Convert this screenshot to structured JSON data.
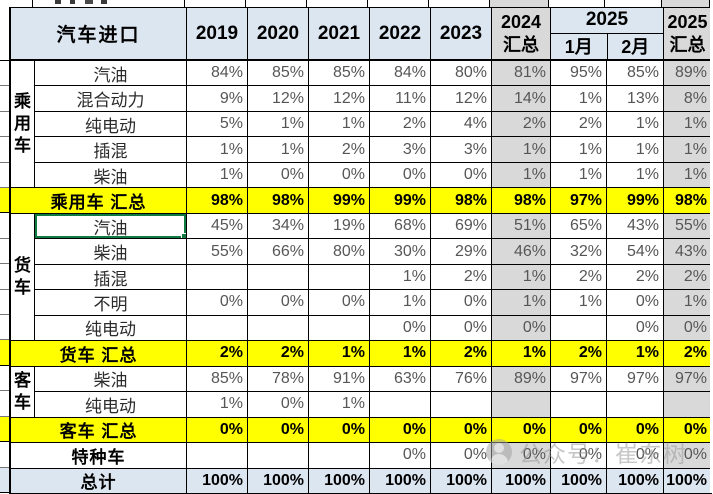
{
  "table": {
    "header": {
      "title": "汽车进口",
      "years": [
        "2019",
        "2020",
        "2021",
        "2022",
        "2023"
      ],
      "col2024": [
        "2024",
        "汇总"
      ],
      "col2025_label": "2025",
      "months": [
        "1月",
        "2月"
      ],
      "col2025t": [
        "2025",
        "汇总"
      ]
    },
    "groups": [
      {
        "label": "乘用车",
        "chars": [
          "乘",
          "用",
          "车"
        ],
        "start": 1,
        "span": 5
      },
      {
        "label": "货车",
        "chars": [
          "货",
          "车"
        ],
        "start": 7,
        "span": 5
      },
      {
        "label": "客车",
        "chars": [
          "客",
          "车"
        ],
        "start": 13,
        "span": 2
      }
    ],
    "rows": [
      {
        "t": "d",
        "label": "汽油",
        "v": [
          "84%",
          "85%",
          "85%",
          "84%",
          "80%",
          "81%",
          "95%",
          "85%",
          "89%"
        ]
      },
      {
        "t": "d",
        "label": "混合动力",
        "v": [
          "9%",
          "12%",
          "12%",
          "11%",
          "12%",
          "14%",
          "1%",
          "13%",
          "8%"
        ]
      },
      {
        "t": "d",
        "label": "纯电动",
        "v": [
          "5%",
          "1%",
          "1%",
          "2%",
          "4%",
          "2%",
          "2%",
          "1%",
          "1%"
        ]
      },
      {
        "t": "d",
        "label": "插混",
        "v": [
          "1%",
          "1%",
          "2%",
          "3%",
          "3%",
          "1%",
          "1%",
          "1%",
          "1%"
        ]
      },
      {
        "t": "d",
        "label": "柴油",
        "v": [
          "1%",
          "0%",
          "0%",
          "0%",
          "0%",
          "1%",
          "1%",
          "1%",
          "1%"
        ]
      },
      {
        "t": "s",
        "label": "乘用车 汇总",
        "v": [
          "98%",
          "98%",
          "99%",
          "99%",
          "98%",
          "98%",
          "97%",
          "99%",
          "98%"
        ]
      },
      {
        "t": "d",
        "label": "汽油",
        "selected": true,
        "v": [
          "45%",
          "34%",
          "19%",
          "68%",
          "69%",
          "51%",
          "65%",
          "43%",
          "55%"
        ]
      },
      {
        "t": "d",
        "label": "柴油",
        "v": [
          "55%",
          "66%",
          "80%",
          "30%",
          "29%",
          "46%",
          "32%",
          "54%",
          "43%"
        ]
      },
      {
        "t": "d",
        "label": "插混",
        "v": [
          "",
          "",
          "",
          "1%",
          "2%",
          "1%",
          "2%",
          "2%",
          "2%"
        ]
      },
      {
        "t": "d",
        "label": "不明",
        "v": [
          "0%",
          "0%",
          "0%",
          "1%",
          "0%",
          "1%",
          "1%",
          "0%",
          "1%"
        ]
      },
      {
        "t": "d",
        "label": "纯电动",
        "v": [
          "",
          "",
          "",
          "0%",
          "0%",
          "0%",
          "",
          "0%",
          "0%"
        ]
      },
      {
        "t": "s",
        "label": "货车 汇总",
        "v": [
          "2%",
          "2%",
          "1%",
          "1%",
          "2%",
          "1%",
          "2%",
          "1%",
          "2%"
        ]
      },
      {
        "t": "d",
        "label": "柴油",
        "v": [
          "85%",
          "78%",
          "91%",
          "63%",
          "76%",
          "89%",
          "97%",
          "97%",
          "97%"
        ]
      },
      {
        "t": "d",
        "label": "纯电动",
        "v": [
          "1%",
          "0%",
          "1%",
          "",
          "",
          "",
          "",
          "",
          ""
        ]
      },
      {
        "t": "s",
        "label": "客车 汇总",
        "v": [
          "0%",
          "0%",
          "0%",
          "0%",
          "0%",
          "0%",
          "0%",
          "0%",
          "0%"
        ]
      },
      {
        "t": "x",
        "label": "特种车",
        "v": [
          "",
          "",
          "",
          "0%",
          "0%",
          "0%",
          "0%",
          "0%",
          "0%"
        ]
      },
      {
        "t": "t",
        "label": "总计",
        "v": [
          "100%",
          "100%",
          "100%",
          "100%",
          "100%",
          "100%",
          "100%",
          "100%",
          "100%"
        ]
      }
    ]
  },
  "watermark": {
    "text": "公众号：崔东树"
  },
  "colors": {
    "header_blue": "#dce6f1",
    "summary_column_gray": "#d9d9d9",
    "summary_row_yellow": "#ffff00",
    "selection_green": "#107c41",
    "grid_black": "#000000"
  }
}
